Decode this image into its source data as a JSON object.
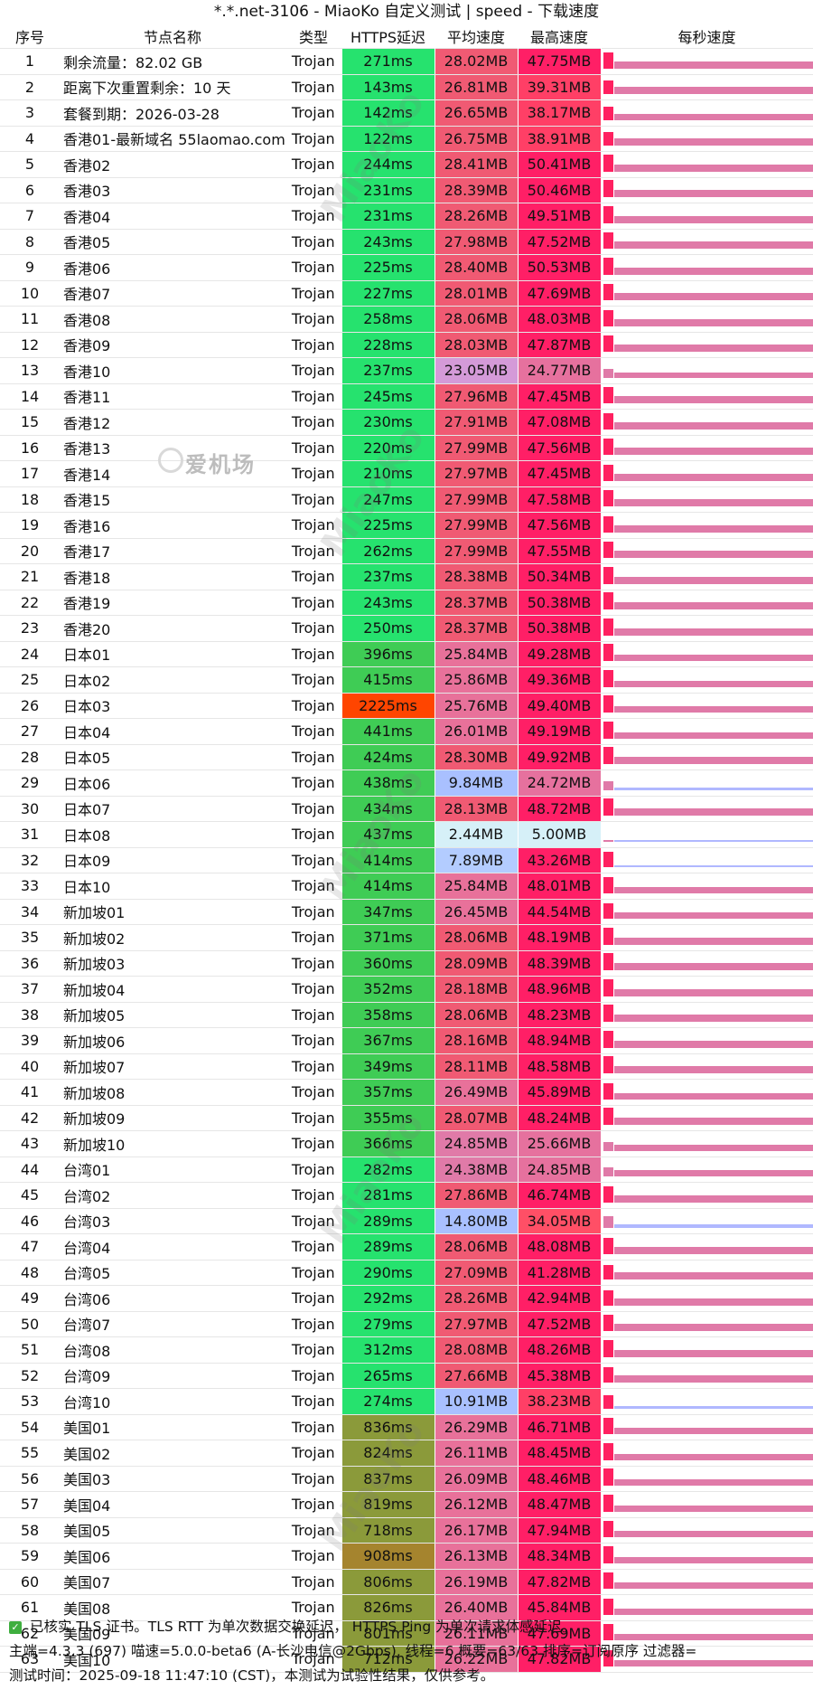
{
  "title": "*.*.net-3106 - MiaoKo 自定义测试 | speed - 下载速度",
  "headers": [
    "序号",
    "节点名称",
    "类型",
    "HTTPS延迟",
    "平均速度",
    "最高速度",
    "每秒速度"
  ],
  "rows": [
    {
      "idx": "1",
      "name": "剩余流量：82.02 GB",
      "type": "Trojan",
      "lat": "271ms",
      "avg": "28.02MB",
      "max": "47.75MB",
      "lat_color": "#26e26e",
      "avg_color": "#f05a73",
      "max_color": "#ff1f66"
    },
    {
      "idx": "2",
      "name": "距离下次重置剩余：10 天",
      "type": "Trojan",
      "lat": "143ms",
      "avg": "26.81MB",
      "max": "39.31MB",
      "lat_color": "#26e26e",
      "avg_color": "#f05a73",
      "max_color": "#ff3f66"
    },
    {
      "idx": "3",
      "name": "套餐到期：2026-03-28",
      "type": "Trojan",
      "lat": "142ms",
      "avg": "26.65MB",
      "max": "38.17MB",
      "lat_color": "#26e26e",
      "avg_color": "#f05a73",
      "max_color": "#ff3f66"
    },
    {
      "idx": "4",
      "name": "香港01-最新域名 55laomao.com",
      "type": "Trojan",
      "lat": "122ms",
      "avg": "26.75MB",
      "max": "38.91MB",
      "lat_color": "#26e26e",
      "avg_color": "#f05a73",
      "max_color": "#ff3f66"
    },
    {
      "idx": "5",
      "name": "香港02",
      "type": "Trojan",
      "lat": "244ms",
      "avg": "28.41MB",
      "max": "50.41MB",
      "lat_color": "#26e26e",
      "avg_color": "#f05a73",
      "max_color": "#ff1f66"
    },
    {
      "idx": "6",
      "name": "香港03",
      "type": "Trojan",
      "lat": "231ms",
      "avg": "28.39MB",
      "max": "50.46MB",
      "lat_color": "#26e26e",
      "avg_color": "#f05a73",
      "max_color": "#ff1f66"
    },
    {
      "idx": "7",
      "name": "香港04",
      "type": "Trojan",
      "lat": "231ms",
      "avg": "28.26MB",
      "max": "49.51MB",
      "lat_color": "#26e26e",
      "avg_color": "#f05a73",
      "max_color": "#ff1f66"
    },
    {
      "idx": "8",
      "name": "香港05",
      "type": "Trojan",
      "lat": "243ms",
      "avg": "27.98MB",
      "max": "47.52MB",
      "lat_color": "#26e26e",
      "avg_color": "#f05a73",
      "max_color": "#ff1f66"
    },
    {
      "idx": "9",
      "name": "香港06",
      "type": "Trojan",
      "lat": "225ms",
      "avg": "28.40MB",
      "max": "50.53MB",
      "lat_color": "#26e26e",
      "avg_color": "#f05a73",
      "max_color": "#ff1f66"
    },
    {
      "idx": "10",
      "name": "香港07",
      "type": "Trojan",
      "lat": "227ms",
      "avg": "28.01MB",
      "max": "47.69MB",
      "lat_color": "#26e26e",
      "avg_color": "#f05a73",
      "max_color": "#ff1f66"
    },
    {
      "idx": "11",
      "name": "香港08",
      "type": "Trojan",
      "lat": "258ms",
      "avg": "28.06MB",
      "max": "48.03MB",
      "lat_color": "#26e26e",
      "avg_color": "#f05a73",
      "max_color": "#ff1f66"
    },
    {
      "idx": "12",
      "name": "香港09",
      "type": "Trojan",
      "lat": "228ms",
      "avg": "28.03MB",
      "max": "47.87MB",
      "lat_color": "#26e26e",
      "avg_color": "#f05a73",
      "max_color": "#ff1f66"
    },
    {
      "idx": "13",
      "name": "香港10",
      "type": "Trojan",
      "lat": "237ms",
      "avg": "23.05MB",
      "max": "24.77MB",
      "lat_color": "#26e26e",
      "avg_color": "#d49ad8",
      "max_color": "#e6719e"
    },
    {
      "idx": "14",
      "name": "香港11",
      "type": "Trojan",
      "lat": "245ms",
      "avg": "27.96MB",
      "max": "47.45MB",
      "lat_color": "#26e26e",
      "avg_color": "#f05a73",
      "max_color": "#ff1f66"
    },
    {
      "idx": "15",
      "name": "香港12",
      "type": "Trojan",
      "lat": "230ms",
      "avg": "27.91MB",
      "max": "47.08MB",
      "lat_color": "#26e26e",
      "avg_color": "#f05a73",
      "max_color": "#ff1f66"
    },
    {
      "idx": "16",
      "name": "香港13",
      "type": "Trojan",
      "lat": "220ms",
      "avg": "27.99MB",
      "max": "47.56MB",
      "lat_color": "#26e26e",
      "avg_color": "#f05a73",
      "max_color": "#ff1f66"
    },
    {
      "idx": "17",
      "name": "香港14",
      "type": "Trojan",
      "lat": "210ms",
      "avg": "27.97MB",
      "max": "47.45MB",
      "lat_color": "#26e26e",
      "avg_color": "#f05a73",
      "max_color": "#ff1f66"
    },
    {
      "idx": "18",
      "name": "香港15",
      "type": "Trojan",
      "lat": "247ms",
      "avg": "27.99MB",
      "max": "47.58MB",
      "lat_color": "#26e26e",
      "avg_color": "#f05a73",
      "max_color": "#ff1f66"
    },
    {
      "idx": "19",
      "name": "香港16",
      "type": "Trojan",
      "lat": "225ms",
      "avg": "27.99MB",
      "max": "47.56MB",
      "lat_color": "#26e26e",
      "avg_color": "#f05a73",
      "max_color": "#ff1f66"
    },
    {
      "idx": "20",
      "name": "香港17",
      "type": "Trojan",
      "lat": "262ms",
      "avg": "27.99MB",
      "max": "47.55MB",
      "lat_color": "#26e26e",
      "avg_color": "#f05a73",
      "max_color": "#ff1f66"
    },
    {
      "idx": "21",
      "name": "香港18",
      "type": "Trojan",
      "lat": "237ms",
      "avg": "28.38MB",
      "max": "50.34MB",
      "lat_color": "#26e26e",
      "avg_color": "#f05a73",
      "max_color": "#ff1f66"
    },
    {
      "idx": "22",
      "name": "香港19",
      "type": "Trojan",
      "lat": "243ms",
      "avg": "28.37MB",
      "max": "50.38MB",
      "lat_color": "#26e26e",
      "avg_color": "#f05a73",
      "max_color": "#ff1f66"
    },
    {
      "idx": "23",
      "name": "香港20",
      "type": "Trojan",
      "lat": "250ms",
      "avg": "28.37MB",
      "max": "50.38MB",
      "lat_color": "#26e26e",
      "avg_color": "#f05a73",
      "max_color": "#ff1f66"
    },
    {
      "idx": "24",
      "name": "日本01",
      "type": "Trojan",
      "lat": "396ms",
      "avg": "25.84MB",
      "max": "49.28MB",
      "lat_color": "#3fcc55",
      "avg_color": "#e8719a",
      "max_color": "#ff1f66"
    },
    {
      "idx": "25",
      "name": "日本02",
      "type": "Trojan",
      "lat": "415ms",
      "avg": "25.86MB",
      "max": "49.36MB",
      "lat_color": "#3fcc55",
      "avg_color": "#e8719a",
      "max_color": "#ff1f66"
    },
    {
      "idx": "26",
      "name": "日本03",
      "type": "Trojan",
      "lat": "2225ms",
      "avg": "25.76MB",
      "max": "49.40MB",
      "lat_color": "#ff4500",
      "avg_color": "#e8719a",
      "max_color": "#ff1f66"
    },
    {
      "idx": "27",
      "name": "日本04",
      "type": "Trojan",
      "lat": "441ms",
      "avg": "26.01MB",
      "max": "49.19MB",
      "lat_color": "#3fcc55",
      "avg_color": "#e8719a",
      "max_color": "#ff1f66"
    },
    {
      "idx": "28",
      "name": "日本05",
      "type": "Trojan",
      "lat": "424ms",
      "avg": "28.30MB",
      "max": "49.92MB",
      "lat_color": "#3fcc55",
      "avg_color": "#f05a73",
      "max_color": "#ff1f66"
    },
    {
      "idx": "29",
      "name": "日本06",
      "type": "Trojan",
      "lat": "438ms",
      "avg": "9.84MB",
      "max": "24.72MB",
      "lat_color": "#3fcc55",
      "avg_color": "#a9c0ff",
      "max_color": "#e6719e"
    },
    {
      "idx": "30",
      "name": "日本07",
      "type": "Trojan",
      "lat": "434ms",
      "avg": "28.13MB",
      "max": "48.72MB",
      "lat_color": "#3fcc55",
      "avg_color": "#f05a73",
      "max_color": "#ff1f66"
    },
    {
      "idx": "31",
      "name": "日本08",
      "type": "Trojan",
      "lat": "437ms",
      "avg": "2.44MB",
      "max": "5.00MB",
      "lat_color": "#3fcc55",
      "avg_color": "#d6f0f8",
      "max_color": "#d6f0f8"
    },
    {
      "idx": "32",
      "name": "日本09",
      "type": "Trojan",
      "lat": "414ms",
      "avg": "7.89MB",
      "max": "43.26MB",
      "lat_color": "#3fcc55",
      "avg_color": "#b3ccff",
      "max_color": "#ff1f66"
    },
    {
      "idx": "33",
      "name": "日本10",
      "type": "Trojan",
      "lat": "414ms",
      "avg": "25.84MB",
      "max": "48.01MB",
      "lat_color": "#3fcc55",
      "avg_color": "#e8719a",
      "max_color": "#ff1f66"
    },
    {
      "idx": "34",
      "name": "新加坡01",
      "type": "Trojan",
      "lat": "347ms",
      "avg": "26.45MB",
      "max": "44.54MB",
      "lat_color": "#3fcc55",
      "avg_color": "#e8719a",
      "max_color": "#ff1f66"
    },
    {
      "idx": "35",
      "name": "新加坡02",
      "type": "Trojan",
      "lat": "371ms",
      "avg": "28.06MB",
      "max": "48.19MB",
      "lat_color": "#3fcc55",
      "avg_color": "#f05a73",
      "max_color": "#ff1f66"
    },
    {
      "idx": "36",
      "name": "新加坡03",
      "type": "Trojan",
      "lat": "360ms",
      "avg": "28.09MB",
      "max": "48.39MB",
      "lat_color": "#3fcc55",
      "avg_color": "#f05a73",
      "max_color": "#ff1f66"
    },
    {
      "idx": "37",
      "name": "新加坡04",
      "type": "Trojan",
      "lat": "352ms",
      "avg": "28.18MB",
      "max": "48.96MB",
      "lat_color": "#3fcc55",
      "avg_color": "#f05a73",
      "max_color": "#ff1f66"
    },
    {
      "idx": "38",
      "name": "新加坡05",
      "type": "Trojan",
      "lat": "358ms",
      "avg": "28.06MB",
      "max": "48.23MB",
      "lat_color": "#3fcc55",
      "avg_color": "#f05a73",
      "max_color": "#ff1f66"
    },
    {
      "idx": "39",
      "name": "新加坡06",
      "type": "Trojan",
      "lat": "367ms",
      "avg": "28.16MB",
      "max": "48.94MB",
      "lat_color": "#3fcc55",
      "avg_color": "#f05a73",
      "max_color": "#ff1f66"
    },
    {
      "idx": "40",
      "name": "新加坡07",
      "type": "Trojan",
      "lat": "349ms",
      "avg": "28.11MB",
      "max": "48.58MB",
      "lat_color": "#3fcc55",
      "avg_color": "#f05a73",
      "max_color": "#ff1f66"
    },
    {
      "idx": "41",
      "name": "新加坡08",
      "type": "Trojan",
      "lat": "357ms",
      "avg": "26.49MB",
      "max": "45.89MB",
      "lat_color": "#3fcc55",
      "avg_color": "#e8719a",
      "max_color": "#ff1f66"
    },
    {
      "idx": "42",
      "name": "新加坡09",
      "type": "Trojan",
      "lat": "355ms",
      "avg": "28.07MB",
      "max": "48.24MB",
      "lat_color": "#3fcc55",
      "avg_color": "#f05a73",
      "max_color": "#ff1f66"
    },
    {
      "idx": "43",
      "name": "新加坡10",
      "type": "Trojan",
      "lat": "366ms",
      "avg": "24.85MB",
      "max": "25.66MB",
      "lat_color": "#3fcc55",
      "avg_color": "#e07aa8",
      "max_color": "#e6719e"
    },
    {
      "idx": "44",
      "name": "台湾01",
      "type": "Trojan",
      "lat": "282ms",
      "avg": "24.38MB",
      "max": "24.85MB",
      "lat_color": "#26e26e",
      "avg_color": "#e07aa8",
      "max_color": "#e6719e"
    },
    {
      "idx": "45",
      "name": "台湾02",
      "type": "Trojan",
      "lat": "281ms",
      "avg": "27.86MB",
      "max": "46.74MB",
      "lat_color": "#26e26e",
      "avg_color": "#f05a73",
      "max_color": "#ff1f66"
    },
    {
      "idx": "46",
      "name": "台湾03",
      "type": "Trojan",
      "lat": "289ms",
      "avg": "14.80MB",
      "max": "34.05MB",
      "lat_color": "#26e26e",
      "avg_color": "#a9c0ff",
      "max_color": "#ff4f66"
    },
    {
      "idx": "47",
      "name": "台湾04",
      "type": "Trojan",
      "lat": "289ms",
      "avg": "28.06MB",
      "max": "48.08MB",
      "lat_color": "#26e26e",
      "avg_color": "#f05a73",
      "max_color": "#ff1f66"
    },
    {
      "idx": "48",
      "name": "台湾05",
      "type": "Trojan",
      "lat": "290ms",
      "avg": "27.09MB",
      "max": "41.28MB",
      "lat_color": "#26e26e",
      "avg_color": "#f05a73",
      "max_color": "#ff1f66"
    },
    {
      "idx": "49",
      "name": "台湾06",
      "type": "Trojan",
      "lat": "292ms",
      "avg": "28.26MB",
      "max": "42.94MB",
      "lat_color": "#26e26e",
      "avg_color": "#f05a73",
      "max_color": "#ff1f66"
    },
    {
      "idx": "50",
      "name": "台湾07",
      "type": "Trojan",
      "lat": "279ms",
      "avg": "27.97MB",
      "max": "47.52MB",
      "lat_color": "#26e26e",
      "avg_color": "#f05a73",
      "max_color": "#ff1f66"
    },
    {
      "idx": "51",
      "name": "台湾08",
      "type": "Trojan",
      "lat": "312ms",
      "avg": "28.08MB",
      "max": "48.26MB",
      "lat_color": "#26e26e",
      "avg_color": "#f05a73",
      "max_color": "#ff1f66"
    },
    {
      "idx": "52",
      "name": "台湾09",
      "type": "Trojan",
      "lat": "265ms",
      "avg": "27.66MB",
      "max": "45.38MB",
      "lat_color": "#26e26e",
      "avg_color": "#f05a73",
      "max_color": "#ff1f66"
    },
    {
      "idx": "53",
      "name": "台湾10",
      "type": "Trojan",
      "lat": "274ms",
      "avg": "10.91MB",
      "max": "38.23MB",
      "lat_color": "#26e26e",
      "avg_color": "#a9c0ff",
      "max_color": "#ff3f66"
    },
    {
      "idx": "54",
      "name": "美国01",
      "type": "Trojan",
      "lat": "836ms",
      "avg": "26.29MB",
      "max": "46.71MB",
      "lat_color": "#8b9a3a",
      "avg_color": "#e8719a",
      "max_color": "#ff1f66"
    },
    {
      "idx": "55",
      "name": "美国02",
      "type": "Trojan",
      "lat": "824ms",
      "avg": "26.11MB",
      "max": "48.45MB",
      "lat_color": "#8b9a3a",
      "avg_color": "#e8719a",
      "max_color": "#ff1f66"
    },
    {
      "idx": "56",
      "name": "美国03",
      "type": "Trojan",
      "lat": "837ms",
      "avg": "26.09MB",
      "max": "48.46MB",
      "lat_color": "#8b9a3a",
      "avg_color": "#e8719a",
      "max_color": "#ff1f66"
    },
    {
      "idx": "57",
      "name": "美国04",
      "type": "Trojan",
      "lat": "819ms",
      "avg": "26.12MB",
      "max": "48.47MB",
      "lat_color": "#8b9a3a",
      "avg_color": "#e8719a",
      "max_color": "#ff1f66"
    },
    {
      "idx": "58",
      "name": "美国05",
      "type": "Trojan",
      "lat": "718ms",
      "avg": "26.17MB",
      "max": "47.94MB",
      "lat_color": "#8b9a3a",
      "avg_color": "#e8719a",
      "max_color": "#ff1f66"
    },
    {
      "idx": "59",
      "name": "美国06",
      "type": "Trojan",
      "lat": "908ms",
      "avg": "26.13MB",
      "max": "48.34MB",
      "lat_color": "#a5842e",
      "avg_color": "#e8719a",
      "max_color": "#ff1f66"
    },
    {
      "idx": "60",
      "name": "美国07",
      "type": "Trojan",
      "lat": "806ms",
      "avg": "26.19MB",
      "max": "47.82MB",
      "lat_color": "#8b9a3a",
      "avg_color": "#e8719a",
      "max_color": "#ff1f66"
    },
    {
      "idx": "61",
      "name": "美国08",
      "type": "Trojan",
      "lat": "826ms",
      "avg": "26.40MB",
      "max": "45.84MB",
      "lat_color": "#8b9a3a",
      "avg_color": "#e8719a",
      "max_color": "#ff1f66"
    },
    {
      "idx": "62",
      "name": "美国09",
      "type": "Trojan",
      "lat": "801ms",
      "avg": "26.11MB",
      "max": "47.69MB",
      "lat_color": "#8b9a3a",
      "avg_color": "#e8719a",
      "max_color": "#ff1f66"
    },
    {
      "idx": "63",
      "name": "美国10",
      "type": "Trojan",
      "lat": "712ms",
      "avg": "26.22MB",
      "max": "47.82MB",
      "lat_color": "#8b9a3a",
      "avg_color": "#e8719a",
      "max_color": "#ff1f66"
    }
  ],
  "footer": {
    "line1": "已核实 TLS 证书。TLS RTT 为单次数据交换延迟， HTTPS Ping 为单次请求体感延迟。",
    "line2": "主端=4.3.3 (697) 喵速=5.0.0-beta6 (A-长沙电信@2Gbps), 线程=6 概要=63/63 排序=订阅原序 过滤器=",
    "line3": "测试时间：2025-09-18 11:47:10 (CST)，本测试为试验性结果，仅供参考。"
  },
  "watermark_text": "MiaoKo",
  "logo_text": "爱机场",
  "colors": {
    "spark_pink": "#e07aa8",
    "spark_hot": "#ff2060",
    "spark_blue": "#b0b8ff",
    "row_border": "#e6e6e6"
  }
}
